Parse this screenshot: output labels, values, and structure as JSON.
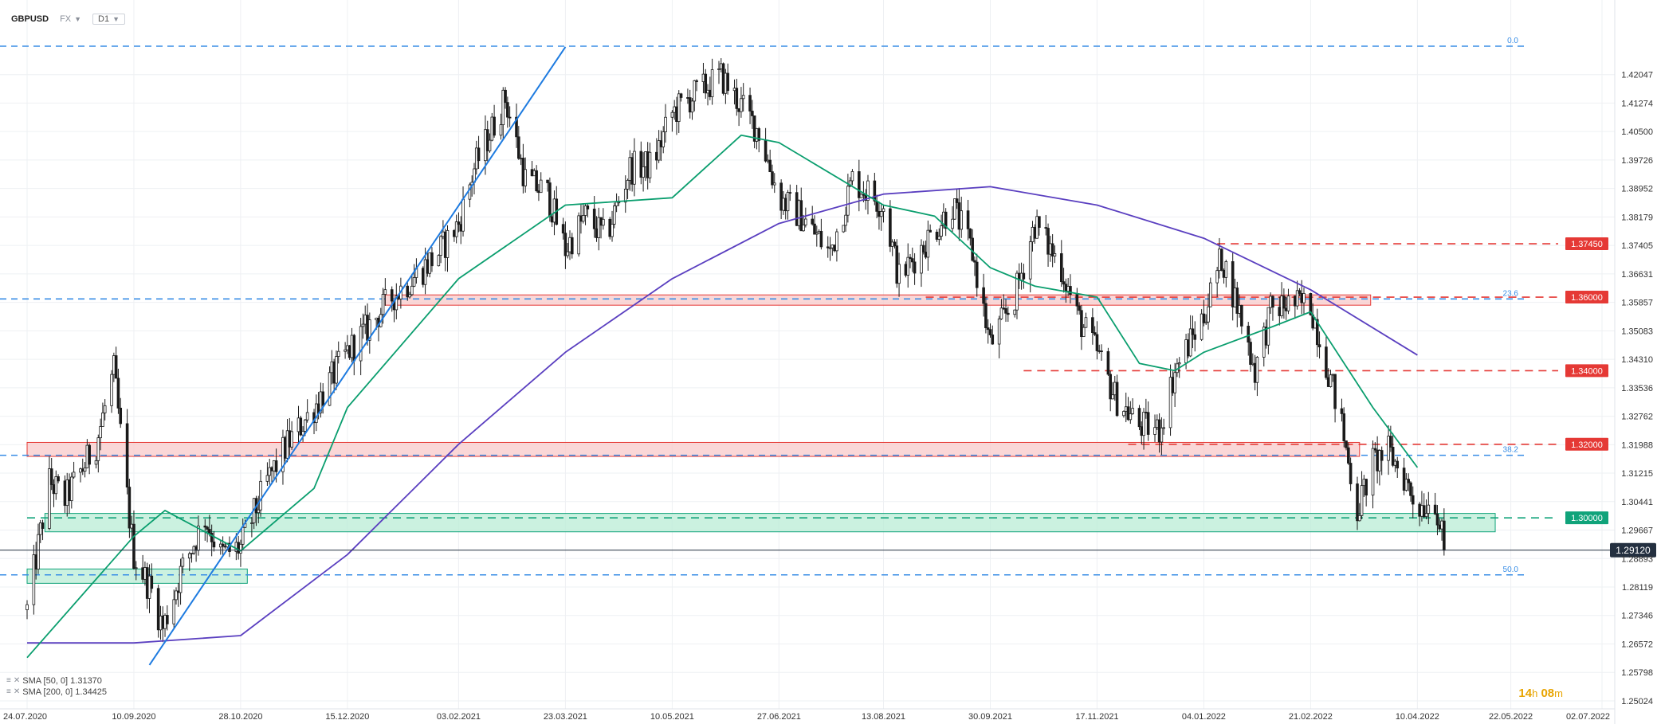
{
  "header": {
    "symbol": "GBPUSD",
    "market": "FX",
    "timeframe": "D1"
  },
  "timer": {
    "hours": "14",
    "hours_unit": "h",
    "minutes": "08",
    "minutes_unit": "m"
  },
  "legend": [
    {
      "label": "SMA [50, 0] 1.31370"
    },
    {
      "label": "SMA [200, 0] 1.34425"
    }
  ],
  "colors": {
    "candle_up": "#ffffff",
    "candle_down": "#1a1a1a",
    "grid": "#eef0f3",
    "sma50": "#0a9e6e",
    "sma200": "#5a3fc0",
    "trendline": "#1e7be0",
    "fib_line": "#3a8ee6",
    "red_level": "#e53935",
    "green_level": "#10a37a",
    "red_zone_fill": "#f8caca",
    "green_zone_fill": "#b9ecd6",
    "last_price_bg": "#243040"
  },
  "chart_data": {
    "type": "candlestick",
    "title": "GBPUSD",
    "ylim": [
      1.25024,
      1.4282
    ],
    "y_ticks": [
      "1.42047",
      "1.41274",
      "1.40500",
      "1.39726",
      "1.38952",
      "1.38179",
      "1.37405",
      "1.36631",
      "1.35857",
      "1.35083",
      "1.34310",
      "1.33536",
      "1.32762",
      "1.31988",
      "1.31215",
      "1.30441",
      "1.29667",
      "1.28893",
      "1.28119",
      "1.27346",
      "1.26572",
      "1.25798",
      "1.25024"
    ],
    "x_ticks": [
      "24.07.2020",
      "10.09.2020",
      "28.10.2020",
      "15.12.2020",
      "03.02.2021",
      "23.03.2021",
      "10.05.2021",
      "27.06.2021",
      "13.08.2021",
      "30.09.2021",
      "17.11.2021",
      "04.01.2022",
      "21.02.2022",
      "10.04.2022",
      "22.05.2022",
      "02.07.2022"
    ],
    "price_path": [
      [
        "24.07.2020",
        1.275
      ],
      [
        "03.08.2020",
        1.31
      ],
      [
        "10.08.2020",
        1.305
      ],
      [
        "24.08.2020",
        1.32
      ],
      [
        "01.09.2020",
        1.34
      ],
      [
        "08.09.2020",
        1.3
      ],
      [
        "10.09.2020",
        1.29
      ],
      [
        "18.09.2020",
        1.28
      ],
      [
        "23.09.2020",
        1.27
      ],
      [
        "01.10.2020",
        1.285
      ],
      [
        "12.10.2020",
        1.3
      ],
      [
        "19.10.2020",
        1.29
      ],
      [
        "28.10.2020",
        1.292
      ],
      [
        "09.11.2020",
        1.31
      ],
      [
        "18.11.2020",
        1.32
      ],
      [
        "30.11.2020",
        1.33
      ],
      [
        "15.12.2020",
        1.345
      ],
      [
        "22.12.2020",
        1.35
      ],
      [
        "04.01.2021",
        1.36
      ],
      [
        "15.01.2021",
        1.366
      ],
      [
        "25.01.2021",
        1.372
      ],
      [
        "03.02.2021",
        1.38
      ],
      [
        "10.02.2021",
        1.395
      ],
      [
        "24.02.2021",
        1.414
      ],
      [
        "05.03.2021",
        1.392
      ],
      [
        "15.03.2021",
        1.388
      ],
      [
        "23.03.2021",
        1.373
      ],
      [
        "01.04.2021",
        1.382
      ],
      [
        "10.04.2021",
        1.376
      ],
      [
        "21.04.2021",
        1.395
      ],
      [
        "01.05.2021",
        1.396
      ],
      [
        "10.05.2021",
        1.41
      ],
      [
        "20.05.2021",
        1.415
      ],
      [
        "01.06.2021",
        1.42
      ],
      [
        "10.06.2021",
        1.412
      ],
      [
        "18.06.2021",
        1.405
      ],
      [
        "27.06.2021",
        1.387
      ],
      [
        "07.07.2021",
        1.382
      ],
      [
        "20.07.2021",
        1.372
      ],
      [
        "30.07.2021",
        1.392
      ],
      [
        "13.08.2021",
        1.385
      ],
      [
        "20.08.2021",
        1.365
      ],
      [
        "01.09.2021",
        1.375
      ],
      [
        "13.09.2021",
        1.385
      ],
      [
        "22.09.2021",
        1.372
      ],
      [
        "30.09.2021",
        1.347
      ],
      [
        "11.10.2021",
        1.36
      ],
      [
        "20.10.2021",
        1.38
      ],
      [
        "01.11.2021",
        1.368
      ],
      [
        "08.11.2021",
        1.355
      ],
      [
        "17.11.2021",
        1.345
      ],
      [
        "25.11.2021",
        1.333
      ],
      [
        "06.12.2021",
        1.325
      ],
      [
        "15.12.2021",
        1.324
      ],
      [
        "22.12.2021",
        1.34
      ],
      [
        "04.01.2022",
        1.355
      ],
      [
        "12.01.2022",
        1.371
      ],
      [
        "20.01.2022",
        1.356
      ],
      [
        "27.01.2022",
        1.34
      ],
      [
        "03.02.2022",
        1.356
      ],
      [
        "10.02.2022",
        1.358
      ],
      [
        "21.02.2022",
        1.358
      ],
      [
        "01.03.2022",
        1.34
      ],
      [
        "07.03.2022",
        1.325
      ],
      [
        "14.03.2022",
        1.302
      ],
      [
        "21.03.2022",
        1.315
      ],
      [
        "28.03.2022",
        1.318
      ],
      [
        "04.04.2022",
        1.311
      ],
      [
        "10.04.2022",
        1.303
      ],
      [
        "18.04.2022",
        1.305
      ],
      [
        "22.04.2022",
        1.2912
      ]
    ],
    "series": [
      {
        "name": "SMA [50, 0]",
        "last_value": 1.3137,
        "points": [
          [
            "24.07.2020",
            1.262
          ],
          [
            "10.09.2020",
            1.295
          ],
          [
            "24.09.2020",
            1.302
          ],
          [
            "28.10.2020",
            1.291
          ],
          [
            "30.11.2020",
            1.308
          ],
          [
            "15.12.2020",
            1.33
          ],
          [
            "03.02.2021",
            1.365
          ],
          [
            "23.03.2021",
            1.385
          ],
          [
            "10.05.2021",
            1.387
          ],
          [
            "10.06.2021",
            1.404
          ],
          [
            "27.06.2021",
            1.402
          ],
          [
            "13.08.2021",
            1.385
          ],
          [
            "05.09.2021",
            1.382
          ],
          [
            "30.09.2021",
            1.368
          ],
          [
            "20.10.2021",
            1.363
          ],
          [
            "17.11.2021",
            1.36
          ],
          [
            "06.12.2021",
            1.342
          ],
          [
            "22.12.2021",
            1.34
          ],
          [
            "04.01.2022",
            1.345
          ],
          [
            "04.02.2022",
            1.352
          ],
          [
            "21.02.2022",
            1.356
          ],
          [
            "21.03.2022",
            1.33
          ],
          [
            "10.04.2022",
            1.3137
          ]
        ]
      },
      {
        "name": "SMA [200, 0]",
        "last_value": 1.34425,
        "points": [
          [
            "24.07.2020",
            1.266
          ],
          [
            "10.09.2020",
            1.266
          ],
          [
            "28.10.2020",
            1.268
          ],
          [
            "15.12.2020",
            1.29
          ],
          [
            "03.02.2021",
            1.32
          ],
          [
            "23.03.2021",
            1.345
          ],
          [
            "10.05.2021",
            1.365
          ],
          [
            "27.06.2021",
            1.38
          ],
          [
            "13.08.2021",
            1.388
          ],
          [
            "30.09.2021",
            1.39
          ],
          [
            "17.11.2021",
            1.385
          ],
          [
            "04.01.2022",
            1.376
          ],
          [
            "21.02.2022",
            1.362
          ],
          [
            "10.04.2022",
            1.34425
          ]
        ]
      }
    ],
    "trendline": {
      "points": [
        [
          "17.09.2020",
          1.26
        ],
        [
          "23.03.2021",
          1.428
        ]
      ]
    },
    "horizontal_levels": [
      {
        "value": 1.3745,
        "label": "1.37450",
        "style": "red-dashed"
      },
      {
        "value": 1.36,
        "label": "1.36000",
        "style": "red-dashed"
      },
      {
        "value": 1.34,
        "label": "1.34000",
        "style": "red-dashed"
      },
      {
        "value": 1.32,
        "label": "1.32000",
        "style": "red-dashed"
      },
      {
        "value": 1.3,
        "label": "1.30000",
        "style": "green-dashed"
      }
    ],
    "zones": [
      {
        "from": 1.3578,
        "to": 1.3606,
        "color": "red",
        "start": "01.01.2021",
        "end": "20.03.2022"
      },
      {
        "from": 1.3167,
        "to": 1.3205,
        "color": "red",
        "start": "24.07.2020",
        "end": "15.03.2022"
      },
      {
        "from": 1.2962,
        "to": 1.3012,
        "color": "green",
        "start": "01.08.2020",
        "end": "15.05.2022"
      },
      {
        "from": 1.2822,
        "to": 1.2861,
        "color": "green",
        "start": "24.07.2020",
        "end": "31.10.2020"
      }
    ],
    "fibonacci": [
      {
        "value": 1.4282,
        "label": "0.0"
      },
      {
        "value": 1.3595,
        "label": "23.6"
      },
      {
        "value": 1.317,
        "label": "38.2"
      },
      {
        "value": 1.2845,
        "label": "50.0"
      }
    ],
    "last_price": {
      "value": 1.2912,
      "label": "1.29120"
    }
  }
}
